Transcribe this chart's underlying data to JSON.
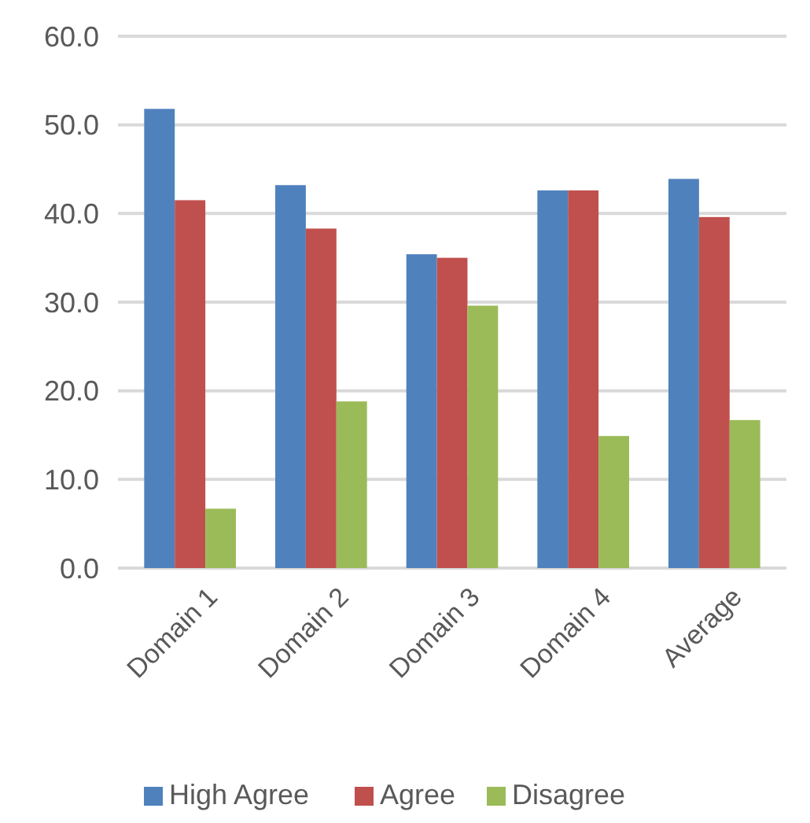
{
  "chart_data": {
    "type": "bar",
    "categories": [
      "Domain 1",
      "Domain 2",
      "Domain 3",
      "Domain 4",
      "Average"
    ],
    "series": [
      {
        "name": "High Agree",
        "color": "#4f81bd",
        "values": [
          51.8,
          43.2,
          35.4,
          42.6,
          43.9
        ]
      },
      {
        "name": "Agree",
        "color": "#c0504d",
        "values": [
          41.5,
          38.3,
          35.0,
          42.6,
          39.6
        ]
      },
      {
        "name": "Disagree",
        "color": "#9bbb59",
        "values": [
          6.7,
          18.8,
          29.6,
          14.9,
          16.7
        ]
      }
    ],
    "ylim": [
      0,
      60
    ],
    "yticks": [
      {
        "value": 0,
        "label": "0.0"
      },
      {
        "value": 10,
        "label": "10.0"
      },
      {
        "value": 20,
        "label": "20.0"
      },
      {
        "value": 30,
        "label": "30.0"
      },
      {
        "value": 40,
        "label": "40.0"
      },
      {
        "value": 50,
        "label": "50.0"
      },
      {
        "value": 60,
        "label": "60.0"
      }
    ],
    "grid": "y",
    "legend": "bottom"
  }
}
